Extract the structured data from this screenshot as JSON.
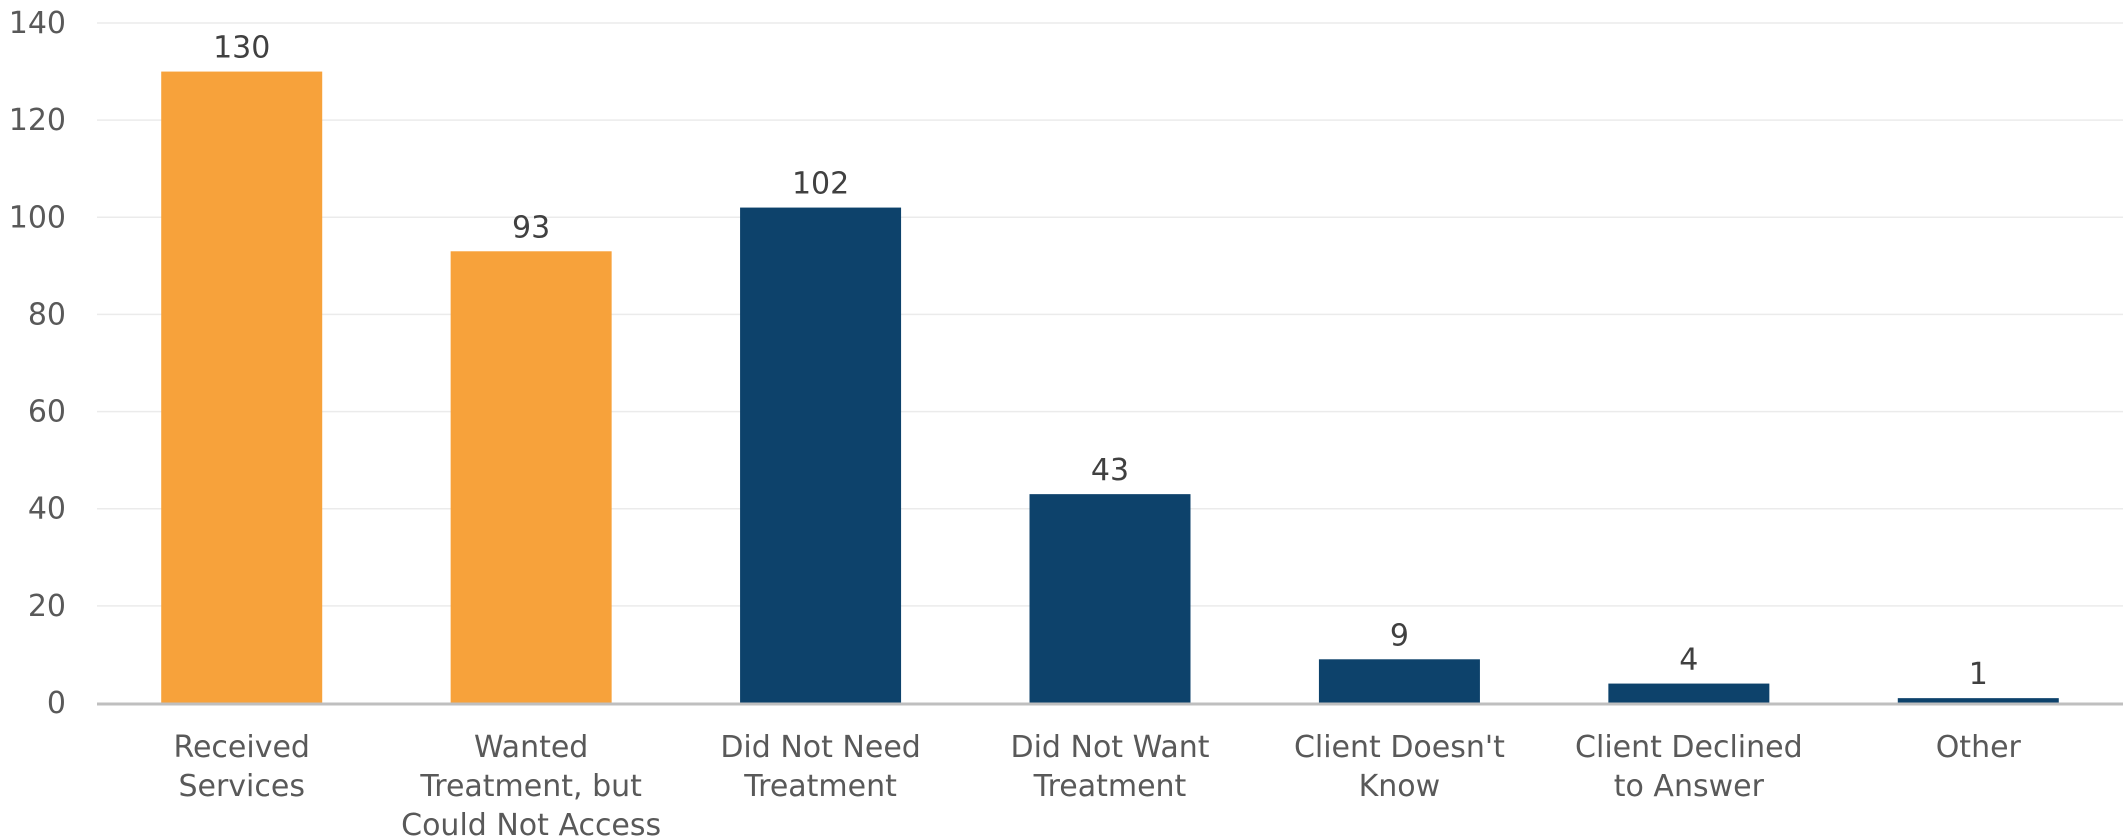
{
  "chart_data": {
    "type": "bar",
    "categories": [
      [
        "Received",
        "Services"
      ],
      [
        "Wanted",
        "Treatment, but",
        "Could Not Access"
      ],
      [
        "Did Not Need",
        "Treatment"
      ],
      [
        "Did Not Want",
        "Treatment"
      ],
      [
        "Client Doesn't",
        "Know"
      ],
      [
        "Client Declined",
        "to Answer"
      ],
      [
        "Other"
      ]
    ],
    "values": [
      130,
      93,
      102,
      43,
      9,
      4,
      1
    ],
    "bar_colors": [
      "#F7A23B",
      "#F7A23B",
      "#0D426B",
      "#0D426B",
      "#0D426B",
      "#0D426B",
      "#0D426B"
    ],
    "data_labels": [
      "130",
      "93",
      "102",
      "43",
      "9",
      "4",
      "1"
    ],
    "y_ticks": [
      0,
      20,
      40,
      60,
      80,
      100,
      120,
      140
    ],
    "ylim": [
      0,
      140
    ],
    "grid": true,
    "legend": "none",
    "title": "",
    "xlabel": "",
    "ylabel": ""
  },
  "colors": {
    "accent_orange": "#F7A23B",
    "accent_navy": "#0D426B",
    "gridline": "#EBEBEB",
    "axis": "#BFBFBF",
    "label_text": "#595959"
  }
}
